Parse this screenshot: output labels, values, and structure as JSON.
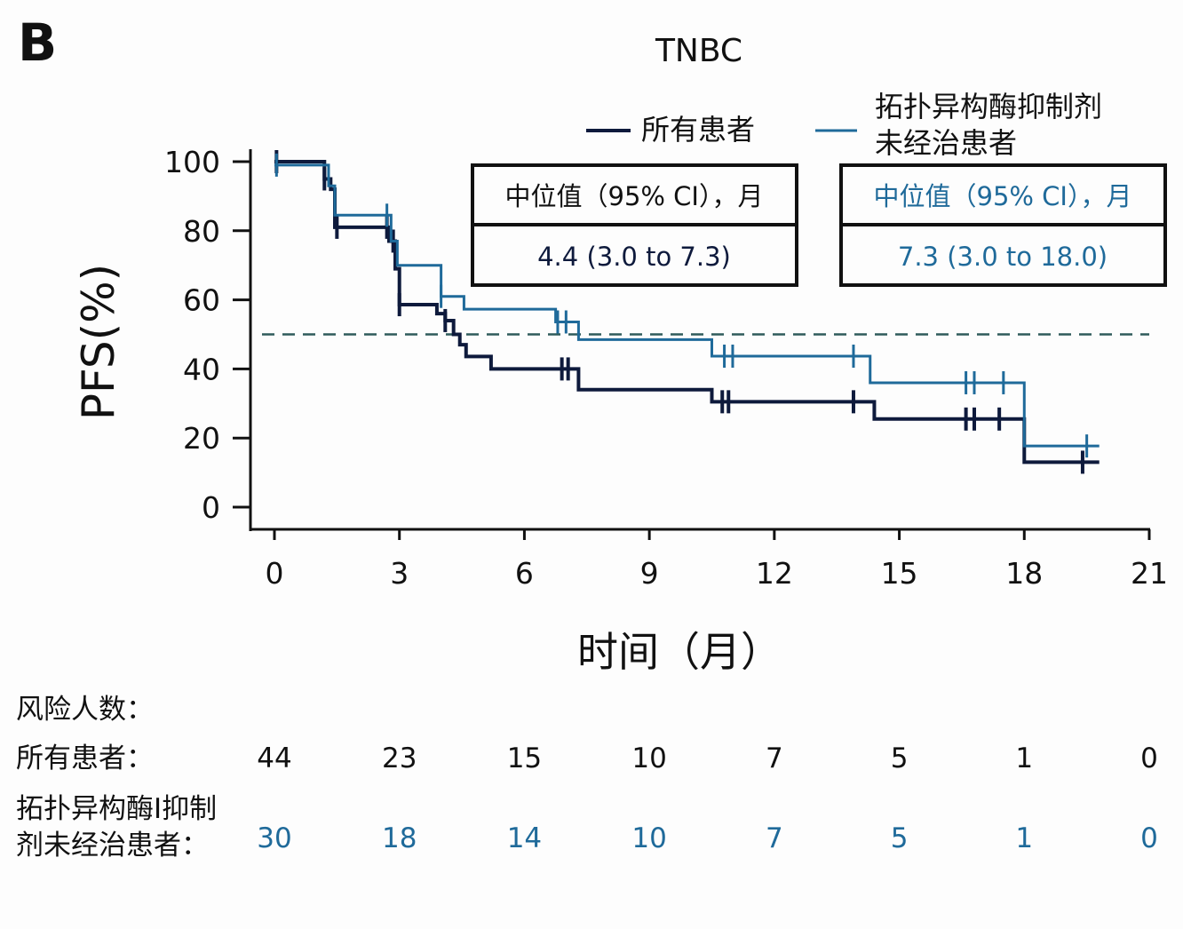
{
  "panel_label": "B",
  "chart_data": {
    "type": "line",
    "subtype": "kaplan-meier step",
    "title": "TNBC",
    "xlabel": "时间（月）",
    "ylabel": "PFS(%)",
    "xlim": [
      0,
      21
    ],
    "ylim": [
      0,
      100
    ],
    "x_ticks": [
      "0",
      "3",
      "6",
      "9",
      "12",
      "15",
      "18",
      "21"
    ],
    "y_ticks": [
      "0",
      "20",
      "40",
      "60",
      "80",
      "100"
    ],
    "reference_line": {
      "y": 50,
      "style": "dashed",
      "color": "#2f5b5b"
    },
    "legend_placement": "top",
    "series": [
      {
        "name": "所有患者",
        "color": "#0e1a3c",
        "steps": [
          [
            0,
            100
          ],
          [
            1.2,
            95
          ],
          [
            1.35,
            92
          ],
          [
            1.45,
            81
          ],
          [
            2.75,
            77
          ],
          [
            2.9,
            69
          ],
          [
            3.0,
            58.6
          ],
          [
            3.9,
            56
          ],
          [
            4.1,
            54
          ],
          [
            4.3,
            50
          ],
          [
            4.45,
            47
          ],
          [
            4.6,
            43.6
          ],
          [
            5.2,
            40
          ],
          [
            7.3,
            34
          ],
          [
            10.5,
            30.5
          ],
          [
            14.4,
            25.5
          ],
          [
            18.0,
            13
          ]
        ],
        "end": 19.8,
        "censored": [
          0.05,
          1.2,
          1.5,
          2.7,
          2.85,
          3.0,
          4.1,
          6.9,
          7.05,
          10.75,
          10.9,
          13.9,
          16.6,
          16.8,
          17.4,
          19.4
        ]
      },
      {
        "name": "拓扑异构酶抑制剂未经治患者",
        "color": "#1f6a9a",
        "steps": [
          [
            0,
            99
          ],
          [
            1.3,
            93
          ],
          [
            1.45,
            84.5
          ],
          [
            2.8,
            77
          ],
          [
            2.95,
            70
          ],
          [
            4.0,
            61
          ],
          [
            4.55,
            57.3
          ],
          [
            6.75,
            53.6
          ],
          [
            7.3,
            48.5
          ],
          [
            10.5,
            43.7
          ],
          [
            14.3,
            36
          ],
          [
            18.0,
            17.7
          ]
        ],
        "end": 19.8,
        "censored": [
          0.05,
          2.7,
          4.0,
          6.8,
          7.0,
          10.8,
          11.0,
          13.9,
          16.6,
          16.8,
          17.5,
          19.5
        ]
      }
    ],
    "legend": {
      "all_label": "所有患者",
      "naive_label_line1": "拓扑异构酶抑制剂",
      "naive_label_line2": "未经治患者"
    },
    "median_boxes": [
      {
        "header": "中位值（95% CI），月",
        "value": "4.4 (3.0 to 7.3)",
        "color": "#0e1a3c"
      },
      {
        "header": "中位值（95% CI），月",
        "value": "7.3 (3.0 to 18.0)",
        "color": "#1f6a9a"
      }
    ],
    "risk_table": {
      "title": "风险人数：",
      "rows": [
        {
          "label_line1": "所有患者：",
          "label_line2": "",
          "values": [
            "44",
            "23",
            "15",
            "10",
            "7",
            "5",
            "1",
            "0"
          ],
          "color": "#111111"
        },
        {
          "label_line1": "拓扑异构酶I抑制",
          "label_line2": "剂未经治患者：",
          "values": [
            "30",
            "18",
            "14",
            "10",
            "7",
            "5",
            "1",
            "0"
          ],
          "color": "#1f6a9a"
        }
      ]
    }
  }
}
